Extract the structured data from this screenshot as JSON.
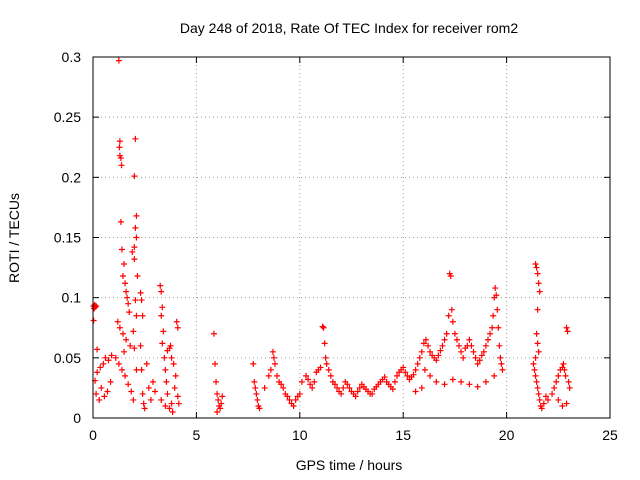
{
  "chart_data": {
    "type": "scatter",
    "title": "Day 248 of 2018, Rate Of TEC Index for receiver rom2",
    "xlabel": "GPS time / hours",
    "ylabel": "ROTI / TECUs",
    "xlim": [
      0,
      25
    ],
    "ylim": [
      0,
      0.3
    ],
    "xticks": [
      "0",
      "5",
      "10",
      "15",
      "20",
      "25"
    ],
    "yticks": [
      "0",
      "0.05",
      "0.1",
      "0.15",
      "0.2",
      "0.25",
      "0.3"
    ],
    "grid": true,
    "marker": "+",
    "color": "#ff0000",
    "points": [
      [
        0.02,
        0.093
      ],
      [
        0.05,
        0.091
      ],
      [
        0.08,
        0.094
      ],
      [
        0.1,
        0.092
      ],
      [
        0.12,
        0.093
      ],
      [
        0.03,
        0.081
      ],
      [
        0.15,
        0.093
      ],
      [
        0.1,
        0.031
      ],
      [
        0.2,
        0.038
      ],
      [
        0.35,
        0.042
      ],
      [
        0.5,
        0.045
      ],
      [
        0.6,
        0.05
      ],
      [
        0.75,
        0.048
      ],
      [
        0.9,
        0.052
      ],
      [
        0.2,
        0.057
      ],
      [
        0.15,
        0.02
      ],
      [
        0.3,
        0.015
      ],
      [
        0.4,
        0.025
      ],
      [
        0.55,
        0.018
      ],
      [
        0.7,
        0.022
      ],
      [
        0.85,
        0.03
      ],
      [
        1.25,
        0.297
      ],
      [
        1.3,
        0.23
      ],
      [
        1.28,
        0.225
      ],
      [
        1.3,
        0.218
      ],
      [
        1.35,
        0.216
      ],
      [
        1.38,
        0.21
      ],
      [
        1.35,
        0.163
      ],
      [
        1.4,
        0.14
      ],
      [
        1.5,
        0.128
      ],
      [
        1.45,
        0.118
      ],
      [
        1.55,
        0.112
      ],
      [
        1.6,
        0.105
      ],
      [
        1.65,
        0.1
      ],
      [
        1.7,
        0.095
      ],
      [
        1.75,
        0.088
      ],
      [
        1.2,
        0.08
      ],
      [
        1.3,
        0.075
      ],
      [
        1.45,
        0.07
      ],
      [
        1.6,
        0.065
      ],
      [
        1.8,
        0.06
      ],
      [
        1.5,
        0.055
      ],
      [
        1.1,
        0.05
      ],
      [
        1.25,
        0.045
      ],
      [
        1.4,
        0.04
      ],
      [
        1.55,
        0.035
      ],
      [
        1.7,
        0.028
      ],
      [
        1.85,
        0.022
      ],
      [
        1.95,
        0.015
      ],
      [
        1.9,
        0.138
      ],
      [
        2.0,
        0.142
      ],
      [
        2.05,
        0.232
      ],
      [
        2.0,
        0.201
      ],
      [
        2.1,
        0.168
      ],
      [
        2.05,
        0.158
      ],
      [
        2.1,
        0.15
      ],
      [
        2.0,
        0.132
      ],
      [
        2.15,
        0.118
      ],
      [
        2.05,
        0.098
      ],
      [
        2.1,
        0.085
      ],
      [
        1.95,
        0.072
      ],
      [
        2.0,
        0.058
      ],
      [
        2.1,
        0.04
      ],
      [
        2.3,
        0.104
      ],
      [
        2.35,
        0.098
      ],
      [
        2.4,
        0.085
      ],
      [
        2.3,
        0.06
      ],
      [
        2.35,
        0.04
      ],
      [
        2.4,
        0.02
      ],
      [
        2.45,
        0.012
      ],
      [
        2.5,
        0.008
      ],
      [
        2.6,
        0.045
      ],
      [
        2.7,
        0.025
      ],
      [
        2.8,
        0.015
      ],
      [
        2.9,
        0.03
      ],
      [
        3.0,
        0.022
      ],
      [
        3.25,
        0.11
      ],
      [
        3.3,
        0.105
      ],
      [
        3.35,
        0.092
      ],
      [
        3.3,
        0.085
      ],
      [
        3.4,
        0.072
      ],
      [
        3.35,
        0.062
      ],
      [
        3.45,
        0.05
      ],
      [
        3.5,
        0.04
      ],
      [
        3.55,
        0.03
      ],
      [
        3.6,
        0.02
      ],
      [
        3.3,
        0.015
      ],
      [
        3.5,
        0.01
      ],
      [
        3.7,
        0.008
      ],
      [
        3.8,
        0.012
      ],
      [
        3.6,
        0.056
      ],
      [
        3.7,
        0.058
      ],
      [
        3.75,
        0.06
      ],
      [
        3.8,
        0.05
      ],
      [
        3.9,
        0.045
      ],
      [
        4.0,
        0.035
      ],
      [
        4.05,
        0.08
      ],
      [
        4.1,
        0.075
      ],
      [
        3.95,
        0.025
      ],
      [
        4.1,
        0.018
      ],
      [
        4.15,
        0.012
      ],
      [
        3.85,
        0.005
      ],
      [
        5.85,
        0.07
      ],
      [
        5.9,
        0.045
      ],
      [
        5.95,
        0.03
      ],
      [
        6.0,
        0.02
      ],
      [
        6.05,
        0.015
      ],
      [
        6.1,
        0.01
      ],
      [
        6.15,
        0.008
      ],
      [
        6.2,
        0.012
      ],
      [
        6.25,
        0.018
      ],
      [
        6.0,
        0.005
      ],
      [
        7.75,
        0.045
      ],
      [
        7.8,
        0.03
      ],
      [
        7.85,
        0.025
      ],
      [
        7.9,
        0.02
      ],
      [
        7.95,
        0.015
      ],
      [
        8.0,
        0.01
      ],
      [
        8.05,
        0.008
      ],
      [
        8.3,
        0.025
      ],
      [
        8.5,
        0.035
      ],
      [
        8.6,
        0.04
      ],
      [
        8.7,
        0.055
      ],
      [
        8.75,
        0.05
      ],
      [
        8.8,
        0.045
      ],
      [
        8.9,
        0.035
      ],
      [
        9.0,
        0.03
      ],
      [
        9.1,
        0.028
      ],
      [
        9.2,
        0.025
      ],
      [
        9.3,
        0.02
      ],
      [
        9.4,
        0.018
      ],
      [
        9.5,
        0.015
      ],
      [
        9.6,
        0.012
      ],
      [
        9.7,
        0.01
      ],
      [
        9.8,
        0.015
      ],
      [
        9.9,
        0.018
      ],
      [
        10.0,
        0.02
      ],
      [
        10.1,
        0.03
      ],
      [
        10.3,
        0.035
      ],
      [
        10.4,
        0.032
      ],
      [
        10.5,
        0.028
      ],
      [
        10.6,
        0.025
      ],
      [
        10.7,
        0.03
      ],
      [
        10.8,
        0.038
      ],
      [
        10.9,
        0.04
      ],
      [
        11.0,
        0.042
      ],
      [
        11.1,
        0.076
      ],
      [
        11.15,
        0.075
      ],
      [
        11.2,
        0.062
      ],
      [
        11.25,
        0.05
      ],
      [
        11.3,
        0.045
      ],
      [
        11.4,
        0.04
      ],
      [
        11.5,
        0.035
      ],
      [
        11.6,
        0.03
      ],
      [
        11.7,
        0.028
      ],
      [
        11.8,
        0.025
      ],
      [
        11.9,
        0.022
      ],
      [
        12.0,
        0.02
      ],
      [
        12.1,
        0.025
      ],
      [
        12.2,
        0.03
      ],
      [
        12.3,
        0.028
      ],
      [
        12.4,
        0.025
      ],
      [
        12.5,
        0.022
      ],
      [
        12.6,
        0.02
      ],
      [
        12.7,
        0.018
      ],
      [
        12.8,
        0.022
      ],
      [
        12.9,
        0.025
      ],
      [
        13.0,
        0.028
      ],
      [
        13.1,
        0.026
      ],
      [
        13.2,
        0.024
      ],
      [
        13.3,
        0.022
      ],
      [
        13.4,
        0.02
      ],
      [
        13.5,
        0.02
      ],
      [
        13.6,
        0.024
      ],
      [
        13.7,
        0.026
      ],
      [
        13.8,
        0.028
      ],
      [
        13.9,
        0.03
      ],
      [
        14.0,
        0.032
      ],
      [
        14.1,
        0.034
      ],
      [
        14.2,
        0.03
      ],
      [
        14.3,
        0.028
      ],
      [
        14.4,
        0.026
      ],
      [
        14.5,
        0.024
      ],
      [
        14.6,
        0.03
      ],
      [
        14.7,
        0.035
      ],
      [
        14.8,
        0.038
      ],
      [
        14.9,
        0.04
      ],
      [
        15.0,
        0.042
      ],
      [
        15.1,
        0.038
      ],
      [
        15.2,
        0.035
      ],
      [
        15.3,
        0.032
      ],
      [
        15.4,
        0.034
      ],
      [
        15.5,
        0.036
      ],
      [
        15.6,
        0.04
      ],
      [
        15.7,
        0.045
      ],
      [
        15.8,
        0.05
      ],
      [
        15.9,
        0.055
      ],
      [
        16.0,
        0.062
      ],
      [
        16.1,
        0.065
      ],
      [
        16.2,
        0.06
      ],
      [
        16.3,
        0.055
      ],
      [
        16.4,
        0.052
      ],
      [
        16.5,
        0.05
      ],
      [
        16.6,
        0.048
      ],
      [
        16.7,
        0.052
      ],
      [
        16.8,
        0.056
      ],
      [
        16.9,
        0.06
      ],
      [
        17.0,
        0.065
      ],
      [
        17.1,
        0.07
      ],
      [
        17.2,
        0.085
      ],
      [
        17.25,
        0.12
      ],
      [
        17.3,
        0.118
      ],
      [
        17.35,
        0.09
      ],
      [
        17.4,
        0.08
      ],
      [
        17.5,
        0.07
      ],
      [
        17.6,
        0.065
      ],
      [
        17.7,
        0.06
      ],
      [
        17.8,
        0.055
      ],
      [
        17.9,
        0.05
      ],
      [
        18.0,
        0.058
      ],
      [
        18.1,
        0.06
      ],
      [
        18.2,
        0.065
      ],
      [
        18.3,
        0.06
      ],
      [
        18.4,
        0.055
      ],
      [
        18.5,
        0.05
      ],
      [
        18.6,
        0.045
      ],
      [
        18.7,
        0.048
      ],
      [
        18.8,
        0.052
      ],
      [
        18.9,
        0.055
      ],
      [
        19.0,
        0.06
      ],
      [
        19.1,
        0.065
      ],
      [
        19.2,
        0.07
      ],
      [
        19.3,
        0.075
      ],
      [
        19.35,
        0.085
      ],
      [
        19.4,
        0.1
      ],
      [
        19.45,
        0.108
      ],
      [
        19.5,
        0.102
      ],
      [
        19.55,
        0.09
      ],
      [
        19.6,
        0.075
      ],
      [
        19.65,
        0.06
      ],
      [
        19.7,
        0.05
      ],
      [
        19.75,
        0.045
      ],
      [
        19.8,
        0.04
      ],
      [
        16.05,
        0.04
      ],
      [
        16.3,
        0.035
      ],
      [
        16.6,
        0.03
      ],
      [
        17.0,
        0.028
      ],
      [
        17.4,
        0.032
      ],
      [
        17.8,
        0.03
      ],
      [
        18.2,
        0.028
      ],
      [
        18.6,
        0.026
      ],
      [
        19.0,
        0.03
      ],
      [
        19.4,
        0.035
      ],
      [
        15.9,
        0.025
      ],
      [
        15.6,
        0.022
      ],
      [
        21.4,
        0.128
      ],
      [
        21.45,
        0.125
      ],
      [
        21.5,
        0.12
      ],
      [
        21.55,
        0.112
      ],
      [
        21.6,
        0.105
      ],
      [
        21.5,
        0.09
      ],
      [
        21.45,
        0.07
      ],
      [
        21.5,
        0.062
      ],
      [
        21.55,
        0.055
      ],
      [
        21.4,
        0.05
      ],
      [
        21.3,
        0.045
      ],
      [
        21.35,
        0.04
      ],
      [
        21.4,
        0.035
      ],
      [
        21.45,
        0.03
      ],
      [
        21.5,
        0.025
      ],
      [
        21.55,
        0.02
      ],
      [
        21.6,
        0.015
      ],
      [
        21.65,
        0.01
      ],
      [
        21.7,
        0.008
      ],
      [
        21.8,
        0.012
      ],
      [
        21.9,
        0.018
      ],
      [
        22.0,
        0.015
      ],
      [
        22.2,
        0.02
      ],
      [
        22.3,
        0.025
      ],
      [
        22.4,
        0.03
      ],
      [
        22.5,
        0.035
      ],
      [
        22.6,
        0.04
      ],
      [
        22.7,
        0.042
      ],
      [
        22.75,
        0.045
      ],
      [
        22.8,
        0.04
      ],
      [
        22.85,
        0.035
      ],
      [
        22.9,
        0.075
      ],
      [
        22.95,
        0.072
      ],
      [
        23.0,
        0.03
      ],
      [
        23.05,
        0.025
      ],
      [
        22.5,
        0.015
      ],
      [
        22.7,
        0.01
      ],
      [
        22.9,
        0.012
      ]
    ]
  }
}
